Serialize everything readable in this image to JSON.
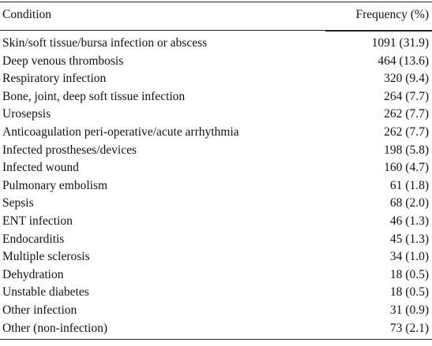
{
  "table": {
    "headers": {
      "condition": "Condition",
      "frequency": "Frequency (%)"
    },
    "rows": [
      {
        "condition": "Skin/soft tissue/bursa infection or abscess",
        "frequency": "1091 (31.9)"
      },
      {
        "condition": "Deep venous thrombosis",
        "frequency": "464 (13.6)"
      },
      {
        "condition": "Respiratory infection",
        "frequency": "320 (9.4)"
      },
      {
        "condition": "Bone, joint, deep soft tissue infection",
        "frequency": "264 (7.7)"
      },
      {
        "condition": "Urosepsis",
        "frequency": "262 (7.7)"
      },
      {
        "condition": "Anticoagulation peri-operative/acute arrhythmia",
        "frequency": "262 (7.7)"
      },
      {
        "condition": "Infected prostheses/devices",
        "frequency": "198 (5.8)"
      },
      {
        "condition": "Infected wound",
        "frequency": "160 (4.7)"
      },
      {
        "condition": "Pulmonary embolism",
        "frequency": "61 (1.8)"
      },
      {
        "condition": "Sepsis",
        "frequency": "68 (2.0)"
      },
      {
        "condition": "ENT infection",
        "frequency": "46 (1.3)"
      },
      {
        "condition": "Endocarditis",
        "frequency": "45 (1.3)"
      },
      {
        "condition": "Multiple sclerosis",
        "frequency": "34 (1.0)"
      },
      {
        "condition": "Dehydration",
        "frequency": "18 (0.5)"
      },
      {
        "condition": "Unstable diabetes",
        "frequency": "18 (0.5)"
      },
      {
        "condition": "Other infection",
        "frequency": "31 (0.9)"
      },
      {
        "condition": "Other (non-infection)",
        "frequency": "73 (2.1)"
      }
    ]
  }
}
